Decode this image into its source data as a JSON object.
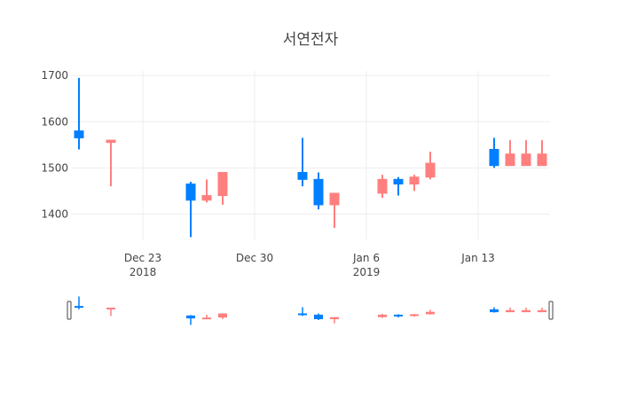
{
  "chart_data": {
    "type": "candlestick",
    "title": "서연전자",
    "xlabel": "",
    "ylabel": "",
    "ylim": [
      1345,
      1710
    ],
    "x_ticks": [
      {
        "date": "2018-12-23",
        "label": "Dec 23",
        "sublabel": "2018"
      },
      {
        "date": "2018-12-30",
        "label": "Dec 30",
        "sublabel": ""
      },
      {
        "date": "2019-01-06",
        "label": "Jan 6",
        "sublabel": "2019"
      },
      {
        "date": "2019-01-13",
        "label": "Jan 13",
        "sublabel": ""
      }
    ],
    "y_ticks": [
      1400,
      1500,
      1600,
      1700
    ],
    "grid": true,
    "colors": {
      "increasing": "#ff7f7f",
      "decreasing": "#007fff"
    },
    "x_range": [
      "2018-12-19",
      "2019-01-17"
    ],
    "candles": [
      {
        "date": "2018-12-19",
        "open": 1580,
        "high": 1695,
        "low": 1540,
        "close": 1565
      },
      {
        "date": "2018-12-21",
        "open": 1555,
        "high": 1560,
        "low": 1460,
        "close": 1560
      },
      {
        "date": "2018-12-26",
        "open": 1465,
        "high": 1470,
        "low": 1350,
        "close": 1430
      },
      {
        "date": "2018-12-27",
        "open": 1430,
        "high": 1475,
        "low": 1425,
        "close": 1440
      },
      {
        "date": "2018-12-28",
        "open": 1440,
        "high": 1490,
        "low": 1420,
        "close": 1490
      },
      {
        "date": "2019-01-02",
        "open": 1490,
        "high": 1565,
        "low": 1460,
        "close": 1475
      },
      {
        "date": "2019-01-03",
        "open": 1475,
        "high": 1490,
        "low": 1410,
        "close": 1420
      },
      {
        "date": "2019-01-04",
        "open": 1420,
        "high": 1445,
        "low": 1370,
        "close": 1445
      },
      {
        "date": "2019-01-07",
        "open": 1445,
        "high": 1485,
        "low": 1435,
        "close": 1475
      },
      {
        "date": "2019-01-08",
        "open": 1475,
        "high": 1480,
        "low": 1440,
        "close": 1465
      },
      {
        "date": "2019-01-09",
        "open": 1465,
        "high": 1485,
        "low": 1450,
        "close": 1480
      },
      {
        "date": "2019-01-10",
        "open": 1480,
        "high": 1535,
        "low": 1475,
        "close": 1510
      },
      {
        "date": "2019-01-14",
        "open": 1540,
        "high": 1565,
        "low": 1500,
        "close": 1505
      },
      {
        "date": "2019-01-15",
        "open": 1505,
        "high": 1560,
        "low": 1505,
        "close": 1530
      },
      {
        "date": "2019-01-16",
        "open": 1505,
        "high": 1560,
        "low": 1505,
        "close": 1530
      },
      {
        "date": "2019-01-17",
        "open": 1505,
        "high": 1560,
        "low": 1505,
        "close": 1530
      }
    ]
  }
}
